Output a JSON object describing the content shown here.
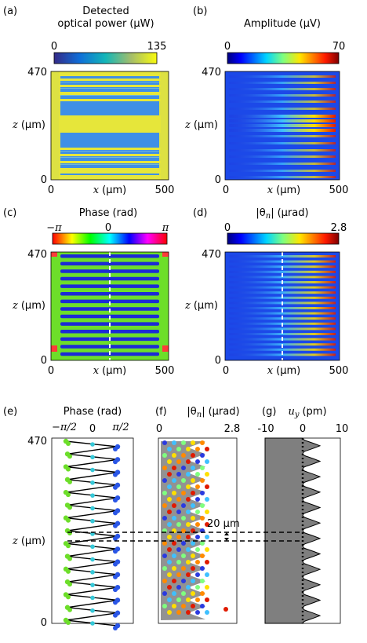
{
  "panels": {
    "a": {
      "label": "(a)",
      "title_line1": "Detected",
      "title_line2": "optical power",
      "title_unit": "(μW)",
      "cbar_min": "0",
      "cbar_max": "135"
    },
    "b": {
      "label": "(b)",
      "title": "Amplitude",
      "title_unit": "(μV)",
      "cbar_min": "0",
      "cbar_max": "70"
    },
    "c": {
      "label": "(c)",
      "title": "Phase",
      "title_unit": "(rad)",
      "cbar_min": "−π",
      "cbar_mid": "0",
      "cbar_max": "π"
    },
    "d": {
      "label": "(d)",
      "title": "|θ",
      "title_sub": "n",
      "title_end": "|",
      "title_unit": "(μrad)",
      "cbar_min": "0",
      "cbar_max": "2.8"
    },
    "e": {
      "label": "(e)",
      "title": "Phase",
      "title_unit": "(rad)",
      "tick_left": "−π/2",
      "tick_mid": "0",
      "tick_right": "π/2"
    },
    "f": {
      "label": "(f)",
      "title": "|θ",
      "title_sub": "n",
      "title_end": "|",
      "title_unit": "(μrad)",
      "tick_left": "0",
      "tick_right": "2.8",
      "annotation": "20 μm"
    },
    "g": {
      "label": "(g)",
      "title": "u",
      "title_sub": "y",
      "title_unit": "(pm)",
      "tick_left": "-10",
      "tick_mid": "0",
      "tick_right": "10"
    }
  },
  "axes": {
    "z_label": "z",
    "z_unit": "(μm)",
    "x_label": "x",
    "x_unit": "(μm)",
    "z_max": "470",
    "z_min": "0",
    "x_min": "0",
    "x_max": "500"
  },
  "chart_data": [
    {
      "type": "heatmap",
      "panel": "a",
      "title": "Detected optical power (μW)",
      "xlabel": "x (μm)",
      "ylabel": "z (μm)",
      "xlim": [
        0,
        500
      ],
      "ylim": [
        0,
        470
      ],
      "clim": [
        0,
        135
      ]
    },
    {
      "type": "heatmap",
      "panel": "b",
      "title": "Amplitude (μV)",
      "xlabel": "x (μm)",
      "ylabel": "z (μm)",
      "xlim": [
        0,
        500
      ],
      "ylim": [
        0,
        470
      ],
      "clim": [
        0,
        70
      ]
    },
    {
      "type": "heatmap",
      "panel": "c",
      "title": "Phase (rad)",
      "xlabel": "x (μm)",
      "ylabel": "z (μm)",
      "xlim": [
        0,
        500
      ],
      "ylim": [
        0,
        470
      ],
      "clim": [
        -3.1416,
        3.1416
      ]
    },
    {
      "type": "heatmap",
      "panel": "d",
      "title": "|θn| (μrad)",
      "xlabel": "x (μm)",
      "ylabel": "z (μm)",
      "xlim": [
        0,
        500
      ],
      "ylim": [
        0,
        470
      ],
      "clim": [
        0,
        2.8
      ]
    },
    {
      "type": "scatter",
      "panel": "e",
      "title": "Phase (rad)",
      "xlim": [
        -1.5708,
        1.5708
      ],
      "ylim": [
        0,
        470
      ]
    },
    {
      "type": "scatter",
      "panel": "f",
      "title": "|θn| (μrad)",
      "xlim": [
        0,
        2.8
      ],
      "ylim": [
        0,
        470
      ]
    },
    {
      "type": "area",
      "panel": "g",
      "title": "u_y (pm)",
      "xlim": [
        -10,
        10
      ],
      "ylim": [
        0,
        470
      ]
    }
  ],
  "colors": {
    "optical_low": "#3f8fe6",
    "optical_high": "#e6e63a",
    "phase_green": "#6dde2a",
    "phase_blue": "#1c2ad6",
    "fill_gray": "#7f7f7f"
  }
}
